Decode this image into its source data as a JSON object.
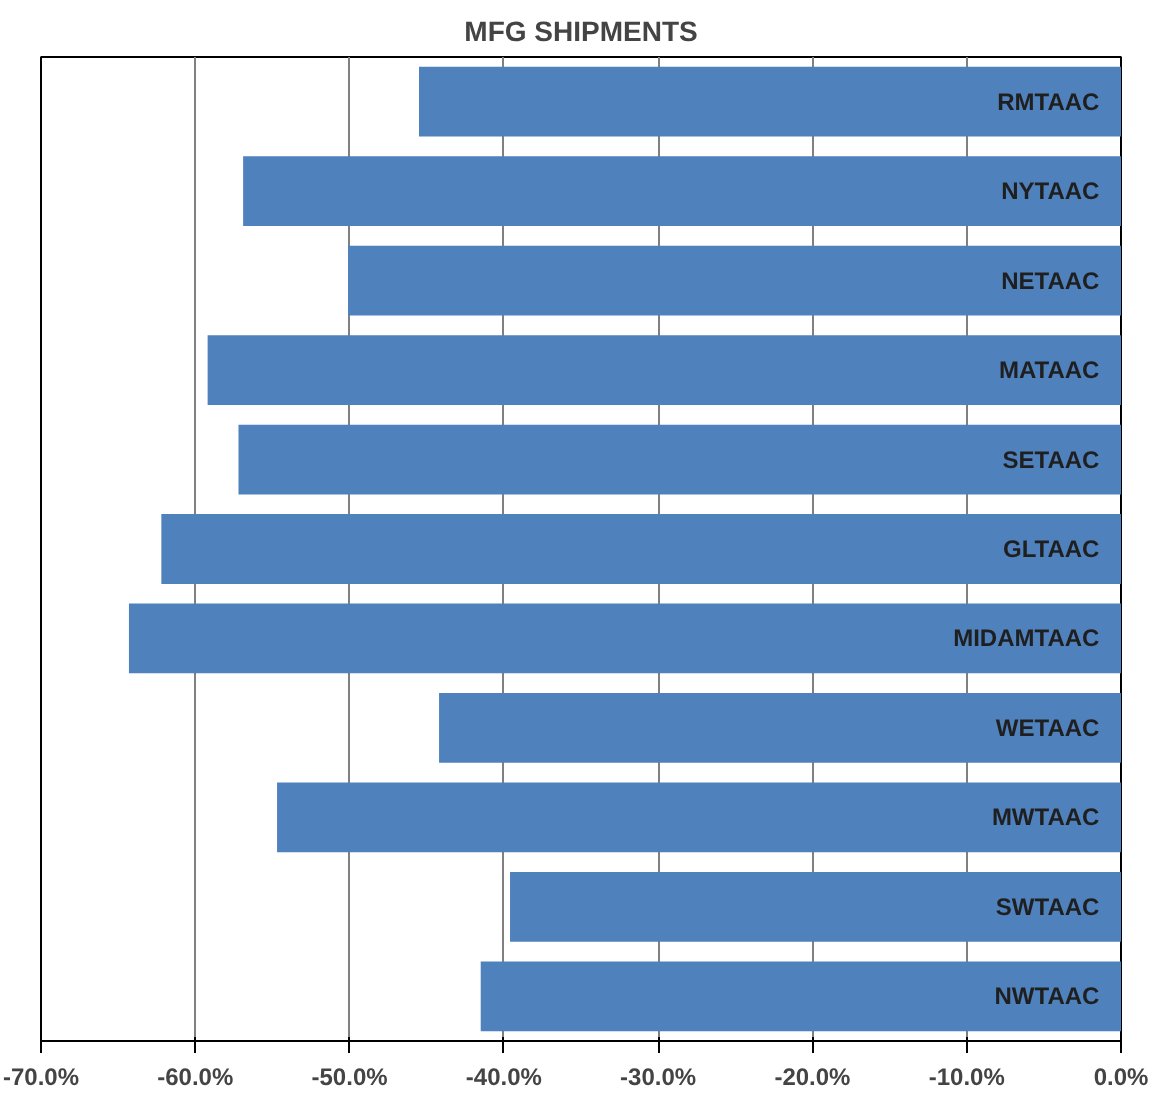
{
  "chart_data": {
    "type": "bar",
    "orientation": "horizontal",
    "title": "MFG SHIPMENTS",
    "categories": [
      "RMTAAC",
      "NYTAAC",
      "NETAAC",
      "MATAAC",
      "SETAAC",
      "GLTAAC",
      "MIDAMTAAC",
      "WETAAC",
      "MWTAAC",
      "SWTAAC",
      "NWTAAC"
    ],
    "values": [
      -45.5,
      -56.9,
      -50.1,
      -59.2,
      -57.2,
      -62.2,
      -64.3,
      -44.2,
      -54.7,
      -39.6,
      -41.5
    ],
    "color": "#4f81bd",
    "xlim": [
      -70,
      0
    ],
    "xticks": [
      {
        "value": -70,
        "label": "-70.0%"
      },
      {
        "value": -60,
        "label": "-60.0%"
      },
      {
        "value": -50,
        "label": "-50.0%"
      },
      {
        "value": -40,
        "label": "-40.0%"
      },
      {
        "value": -30,
        "label": "-30.0%"
      },
      {
        "value": -20,
        "label": "-20.0%"
      },
      {
        "value": -10,
        "label": "-10.0%"
      },
      {
        "value": 0,
        "label": "0.0%"
      }
    ],
    "grid": "x"
  }
}
